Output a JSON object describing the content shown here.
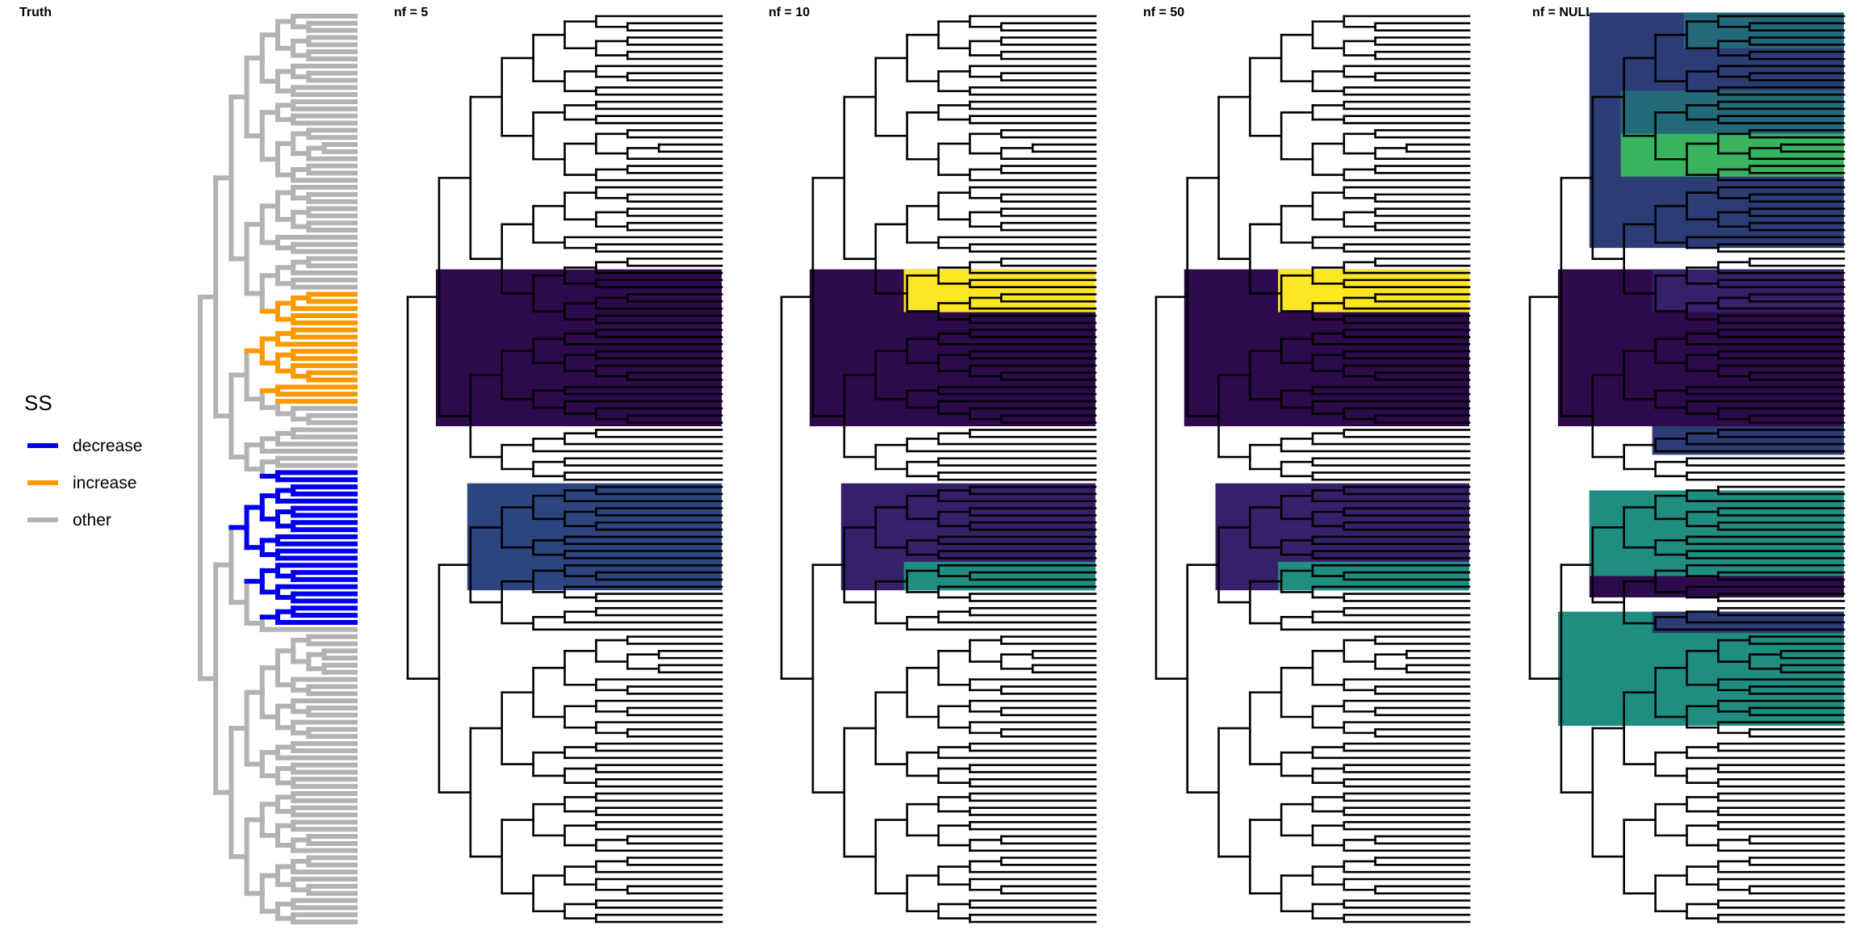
{
  "figure": {
    "tip_count": 128,
    "tree_seed": 20240611,
    "panels": [
      {
        "id": "truth",
        "title": "Truth",
        "line_color": "#b3b3b3",
        "colored_clades": [
          {
            "first_tip": 39,
            "last_tip": 54,
            "color": "#ff9900",
            "label_ref": "increase"
          },
          {
            "first_tip": 64,
            "last_tip": 85,
            "color": "#0000ee",
            "label_ref": "decrease"
          }
        ],
        "highlights": []
      },
      {
        "id": "nf5",
        "title": "nf = 5",
        "line_color": "#000000",
        "colored_clades": [],
        "highlights": [
          {
            "first_tip": 36,
            "last_tip": 57,
            "color": "#2d0a4b"
          },
          {
            "first_tip": 66,
            "last_tip": 80,
            "color": "#2c4580"
          }
        ]
      },
      {
        "id": "nf10",
        "title": "nf = 10",
        "line_color": "#000000",
        "colored_clades": [],
        "highlights": [
          {
            "first_tip": 36,
            "last_tip": 57,
            "color": "#2d0a4b"
          },
          {
            "first_tip": 36,
            "last_tip": 41,
            "color": "#fde725"
          },
          {
            "first_tip": 66,
            "last_tip": 80,
            "color": "#36206a"
          },
          {
            "first_tip": 77,
            "last_tip": 80,
            "color": "#1f8d80"
          }
        ]
      },
      {
        "id": "nf50",
        "title": "nf = 50",
        "line_color": "#000000",
        "colored_clades": [],
        "highlights": [
          {
            "first_tip": 36,
            "last_tip": 57,
            "color": "#2d0a4b"
          },
          {
            "first_tip": 36,
            "last_tip": 41,
            "color": "#fde725"
          },
          {
            "first_tip": 66,
            "last_tip": 80,
            "color": "#36206a"
          },
          {
            "first_tip": 77,
            "last_tip": 80,
            "color": "#1f8d80"
          }
        ]
      },
      {
        "id": "nfnull",
        "title": "nf = NULL",
        "line_color": "#000000",
        "colored_clades": [],
        "highlights": [
          {
            "first_tip": 0,
            "last_tip": 32,
            "color": "#2c3d76"
          },
          {
            "first_tip": 0,
            "last_tip": 4,
            "color": "#24697a"
          },
          {
            "first_tip": 11,
            "last_tip": 22,
            "color": "#38b45e"
          },
          {
            "first_tip": 11,
            "last_tip": 16,
            "color": "#24697a"
          },
          {
            "first_tip": 36,
            "last_tip": 57,
            "color": "#2d0a4b"
          },
          {
            "first_tip": 36,
            "last_tip": 41,
            "color": "#36206a"
          },
          {
            "first_tip": 58,
            "last_tip": 61,
            "color": "#2c3d76"
          },
          {
            "first_tip": 67,
            "last_tip": 81,
            "color": "#2d0a4b"
          },
          {
            "first_tip": 67,
            "last_tip": 78,
            "color": "#1f8d80"
          },
          {
            "first_tip": 84,
            "last_tip": 99,
            "color": "#1f8d80"
          },
          {
            "first_tip": 84,
            "last_tip": 86,
            "color": "#2c3d76"
          }
        ]
      }
    ]
  },
  "legend": {
    "title": "SS",
    "items": [
      {
        "label": "decrease",
        "color": "#0000ee"
      },
      {
        "label": "increase",
        "color": "#ff9900"
      },
      {
        "label": "other",
        "color": "#b3b3b3"
      }
    ]
  }
}
